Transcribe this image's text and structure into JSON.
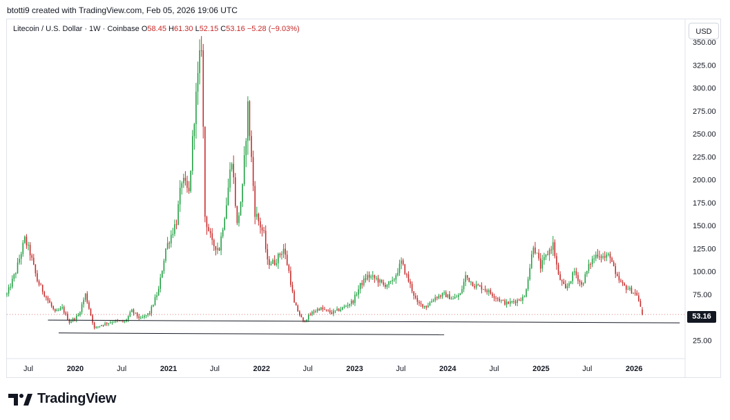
{
  "header": {
    "credit": "btotti9 created with TradingView.com, Feb 05, 2026 19:06 UTC"
  },
  "legend": {
    "symbol": "Litecoin / U.S. Dollar · 1W · Coinbase",
    "open_label": "O",
    "open": "58.45",
    "high_label": "H",
    "high": "61.30",
    "low_label": "L",
    "low": "52.15",
    "close_label": "C",
    "close": "53.16",
    "change": "−5.28 (−9.03%)"
  },
  "currency_button": "USD",
  "last_price_label": "53.16",
  "footer": {
    "brand": "TradingView",
    "logo_icon": "tradingview-logo-icon"
  },
  "colors": {
    "up": "#26a69a",
    "up_green": "#1b9e3e",
    "down": "#c62828",
    "support_line": "#131722"
  },
  "chart_data": {
    "type": "candlestick",
    "title": "",
    "symbol": "Litecoin / U.S. Dollar",
    "interval": "1W",
    "exchange": "Coinbase",
    "ylim": [
      5,
      375
    ],
    "y_ticks": [
      25,
      75,
      100,
      125,
      150,
      175,
      200,
      225,
      250,
      275,
      300,
      325,
      350
    ],
    "y_tick_labels": [
      "25.00",
      "75.00",
      "100.00",
      "125.00",
      "150.00",
      "175.00",
      "200.00",
      "225.00",
      "250.00",
      "275.00",
      "300.00",
      "325.00",
      "350.00"
    ],
    "x_ticks": [
      {
        "date": "2019-07-01",
        "label": "Jul"
      },
      {
        "date": "2020-01-01",
        "label": "2020"
      },
      {
        "date": "2020-07-01",
        "label": "Jul"
      },
      {
        "date": "2021-01-01",
        "label": "2021"
      },
      {
        "date": "2021-07-01",
        "label": "Jul"
      },
      {
        "date": "2022-01-01",
        "label": "2022"
      },
      {
        "date": "2022-07-01",
        "label": "Jul"
      },
      {
        "date": "2023-01-01",
        "label": "2023"
      },
      {
        "date": "2023-07-01",
        "label": "Jul"
      },
      {
        "date": "2024-01-01",
        "label": "2024"
      },
      {
        "date": "2024-07-01",
        "label": "Jul"
      },
      {
        "date": "2025-01-01",
        "label": "2025"
      },
      {
        "date": "2025-07-01",
        "label": "Jul"
      },
      {
        "date": "2026-01-01",
        "label": "2026"
      }
    ],
    "x_range": [
      "2019-04-08",
      "2026-07-20"
    ],
    "last_close": 53.16,
    "price_path": [
      [
        "2019-04-08",
        75
      ],
      [
        "2019-05-13",
        100
      ],
      [
        "2019-06-17",
        135
      ],
      [
        "2019-07-08",
        120
      ],
      [
        "2019-08-05",
        90
      ],
      [
        "2019-09-09",
        72
      ],
      [
        "2019-10-14",
        55
      ],
      [
        "2019-11-11",
        60
      ],
      [
        "2019-12-09",
        45
      ],
      [
        "2020-01-13",
        52
      ],
      [
        "2020-02-10",
        75
      ],
      [
        "2020-03-16",
        38
      ],
      [
        "2020-04-13",
        42
      ],
      [
        "2020-06-01",
        46
      ],
      [
        "2020-07-13",
        45
      ],
      [
        "2020-08-10",
        57
      ],
      [
        "2020-09-14",
        48
      ],
      [
        "2020-10-19",
        55
      ],
      [
        "2020-11-23",
        80
      ],
      [
        "2020-12-21",
        125
      ],
      [
        "2021-01-11",
        140
      ],
      [
        "2021-02-01",
        155
      ],
      [
        "2021-02-22",
        200
      ],
      [
        "2021-03-22",
        185
      ],
      [
        "2021-04-12",
        270
      ],
      [
        "2021-05-10",
        350
      ],
      [
        "2021-05-24",
        160
      ],
      [
        "2021-06-21",
        130
      ],
      [
        "2021-07-19",
        125
      ],
      [
        "2021-08-16",
        175
      ],
      [
        "2021-09-06",
        225
      ],
      [
        "2021-09-27",
        150
      ],
      [
        "2021-10-18",
        190
      ],
      [
        "2021-11-08",
        280
      ],
      [
        "2021-12-06",
        165
      ],
      [
        "2022-01-10",
        140
      ],
      [
        "2022-01-24",
        110
      ],
      [
        "2022-02-21",
        110
      ],
      [
        "2022-03-28",
        125
      ],
      [
        "2022-04-18",
        100
      ],
      [
        "2022-05-09",
        65
      ],
      [
        "2022-06-13",
        45
      ],
      [
        "2022-07-18",
        55
      ],
      [
        "2022-08-15",
        60
      ],
      [
        "2022-10-03",
        55
      ],
      [
        "2022-11-14",
        60
      ],
      [
        "2022-12-26",
        68
      ],
      [
        "2023-01-23",
        85
      ],
      [
        "2023-02-20",
        95
      ],
      [
        "2023-03-27",
        92
      ],
      [
        "2023-04-24",
        85
      ],
      [
        "2023-05-29",
        88
      ],
      [
        "2023-07-03",
        110
      ],
      [
        "2023-08-07",
        85
      ],
      [
        "2023-09-04",
        65
      ],
      [
        "2023-10-09",
        62
      ],
      [
        "2023-11-13",
        72
      ],
      [
        "2023-12-18",
        75
      ],
      [
        "2024-01-22",
        70
      ],
      [
        "2024-02-19",
        75
      ],
      [
        "2024-03-11",
        95
      ],
      [
        "2024-04-15",
        85
      ],
      [
        "2024-05-20",
        82
      ],
      [
        "2024-06-24",
        75
      ],
      [
        "2024-07-29",
        68
      ],
      [
        "2024-08-19",
        65
      ],
      [
        "2024-09-23",
        68
      ],
      [
        "2024-10-28",
        72
      ],
      [
        "2024-11-18",
        105
      ],
      [
        "2024-12-02",
        130
      ],
      [
        "2024-12-30",
        105
      ],
      [
        "2025-01-27",
        120
      ],
      [
        "2025-02-17",
        130
      ],
      [
        "2025-03-10",
        95
      ],
      [
        "2025-04-07",
        80
      ],
      [
        "2025-05-12",
        100
      ],
      [
        "2025-06-09",
        85
      ],
      [
        "2025-07-14",
        110
      ],
      [
        "2025-08-11",
        120
      ],
      [
        "2025-09-08",
        115
      ],
      [
        "2025-09-29",
        118
      ],
      [
        "2025-10-20",
        95
      ],
      [
        "2025-11-17",
        85
      ],
      [
        "2025-12-15",
        80
      ],
      [
        "2026-01-12",
        75
      ],
      [
        "2026-02-02",
        53.16
      ]
    ],
    "support_lines": [
      {
        "from": [
          "2019-09-16",
          47
        ],
        "to": [
          "2026-06-29",
          44
        ]
      },
      {
        "from": [
          "2019-10-28",
          33
        ],
        "to": [
          "2023-12-18",
          31
        ]
      }
    ]
  }
}
